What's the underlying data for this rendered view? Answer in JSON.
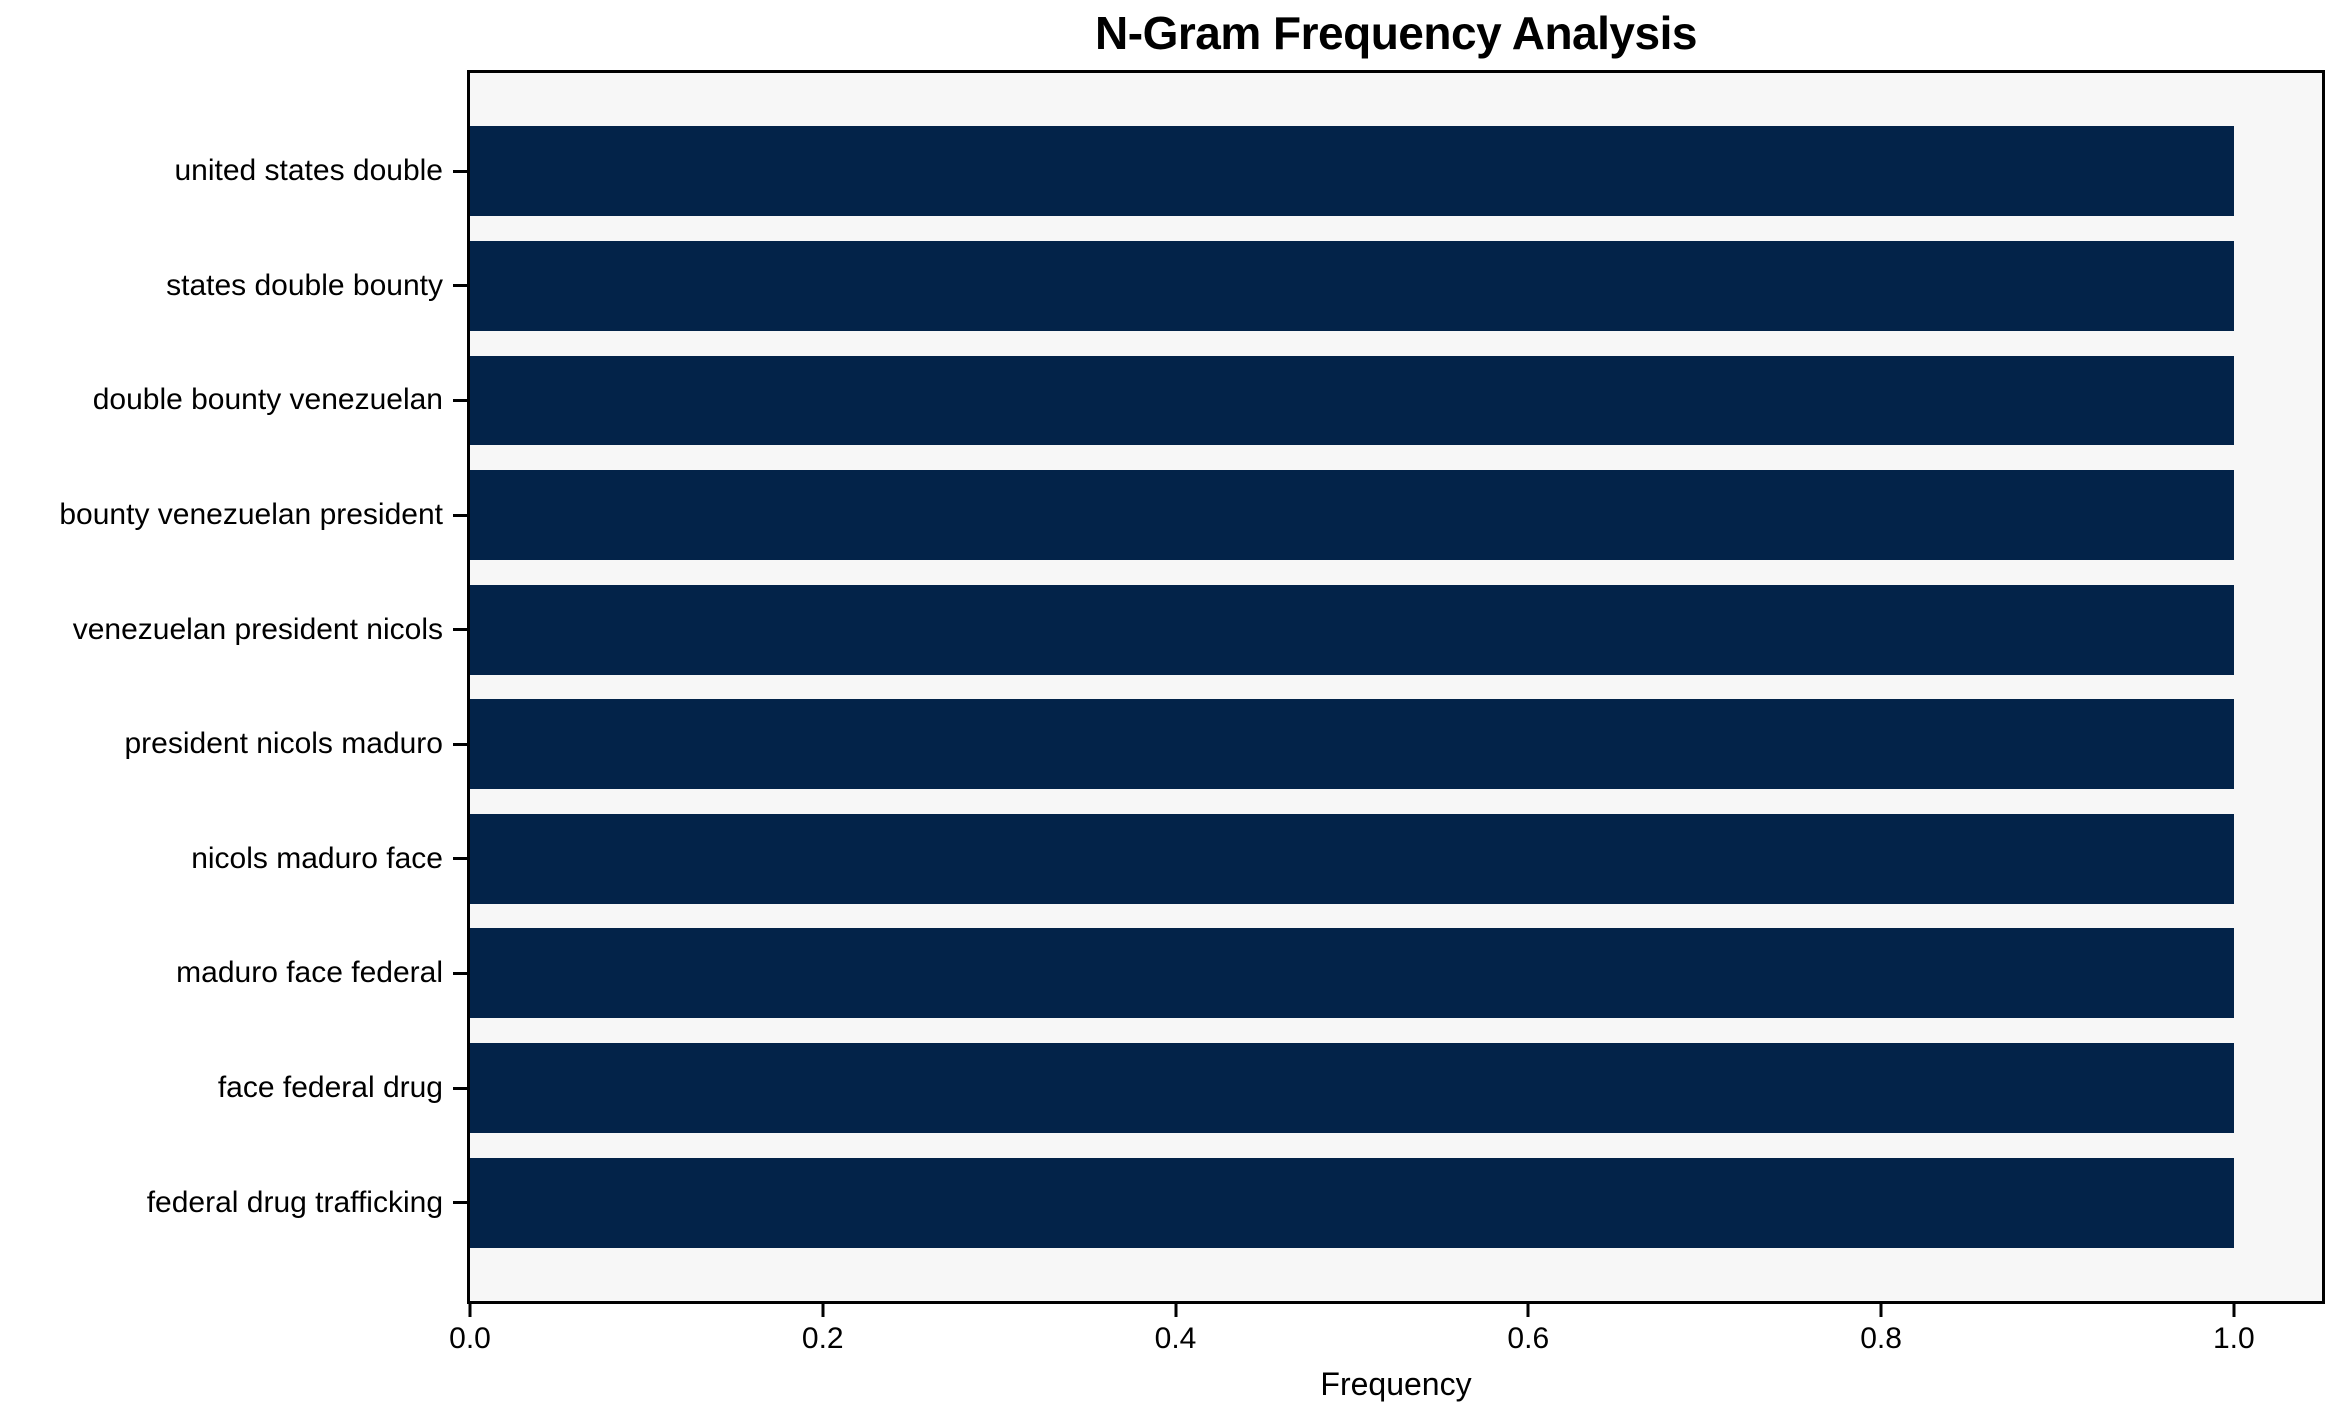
{
  "chart_data": {
    "type": "bar",
    "orientation": "horizontal",
    "title": "N-Gram Frequency Analysis",
    "xlabel": "Frequency",
    "ylabel": "",
    "categories": [
      "united states double",
      "states double bounty",
      "double bounty venezuelan",
      "bounty venezuelan president",
      "venezuelan president nicols",
      "president nicols maduro",
      "nicols maduro face",
      "maduro face federal",
      "face federal drug",
      "federal drug trafficking"
    ],
    "values": [
      1.0,
      1.0,
      1.0,
      1.0,
      1.0,
      1.0,
      1.0,
      1.0,
      1.0,
      1.0
    ],
    "xticks": [
      0.0,
      0.2,
      0.4,
      0.6,
      0.8,
      1.0
    ],
    "xtick_labels": [
      "0.0",
      "0.2",
      "0.4",
      "0.6",
      "0.8",
      "1.0"
    ],
    "xlim": [
      0,
      1.05
    ],
    "grid": false,
    "legend": null,
    "colors": {
      "bar": "#032349",
      "plot_background": "#f7f7f7",
      "figure_background": "#ffffff",
      "spine": "#000000",
      "text": "#000000"
    }
  }
}
